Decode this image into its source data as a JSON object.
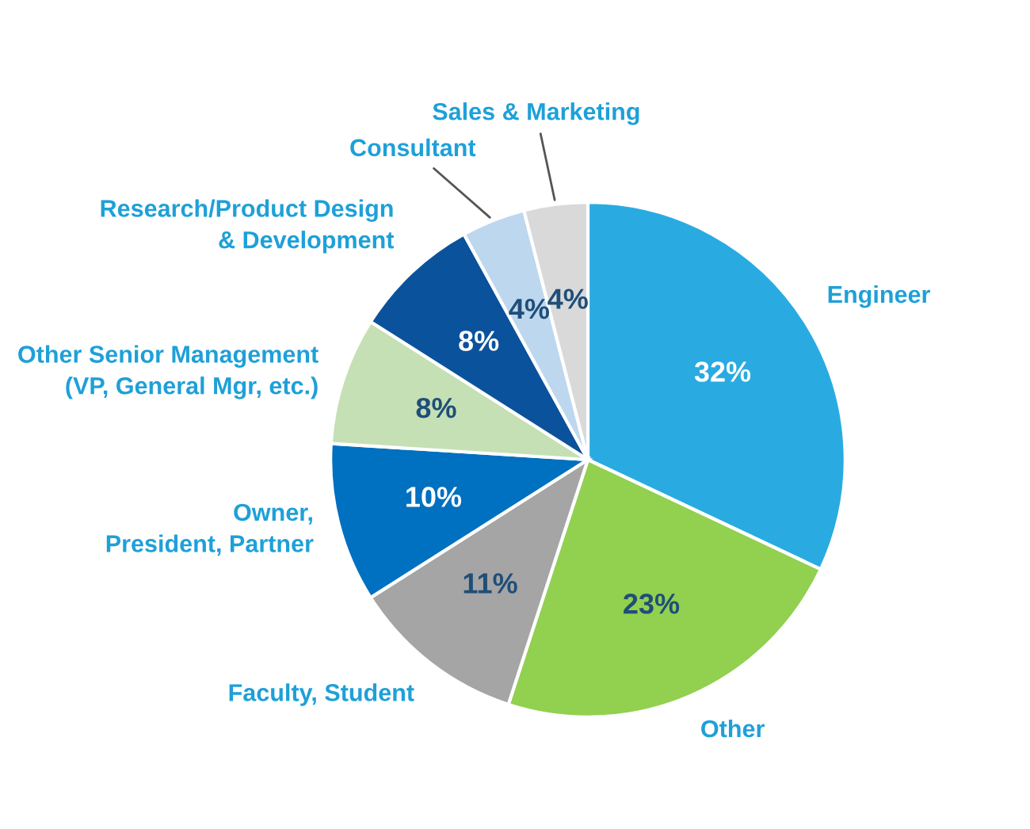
{
  "chart_data": {
    "type": "pie",
    "categories": [
      "Engineer",
      "Other",
      "Faculty, Student",
      "Owner,\nPresident, Partner",
      "Other Senior Management\n(VP, General Mgr, etc.)",
      "Research/Product Design\n& Development",
      "Consultant",
      "Sales & Marketing"
    ],
    "values": [
      32,
      23,
      11,
      10,
      8,
      8,
      4,
      4
    ],
    "value_labels": [
      "32%",
      "23%",
      "11%",
      "10%",
      "8%",
      "8%",
      "4%",
      "4%"
    ],
    "colors": [
      "#29abe2",
      "#92d050",
      "#a5a5a5",
      "#0070c0",
      "#c5e0b4",
      "#0b529c",
      "#bdd7ee",
      "#d9d9d9"
    ],
    "legend": false
  }
}
